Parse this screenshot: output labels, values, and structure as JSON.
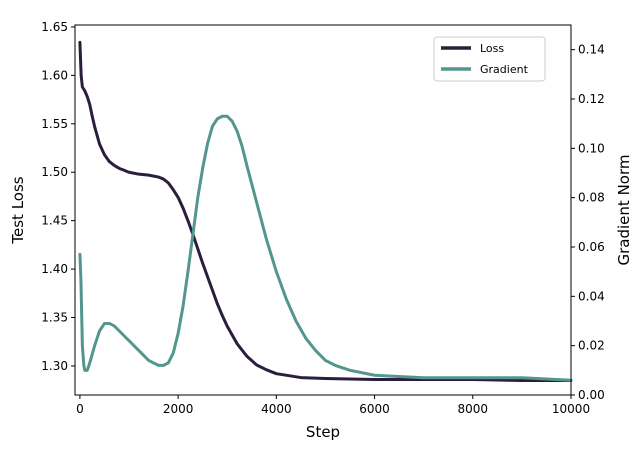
{
  "chart_data": {
    "type": "line",
    "xlabel": "Step",
    "ylabel_left": "Test Loss",
    "ylabel_right": "Gradient Norm",
    "xlim": [
      -100,
      10000
    ],
    "ylim_left": [
      1.27,
      1.652
    ],
    "ylim_right": [
      0.0,
      0.15
    ],
    "x_ticks": [
      0,
      2000,
      4000,
      6000,
      8000,
      10000
    ],
    "x_tick_labels": [
      "0",
      "2000",
      "4000",
      "6000",
      "8000",
      "10000"
    ],
    "y_left_ticks": [
      1.3,
      1.35,
      1.4,
      1.45,
      1.5,
      1.55,
      1.6,
      1.65
    ],
    "y_left_tick_labels": [
      "1.30",
      "1.35",
      "1.40",
      "1.45",
      "1.50",
      "1.55",
      "1.60",
      "1.65"
    ],
    "y_right_ticks": [
      0.0,
      0.02,
      0.04,
      0.06,
      0.08,
      0.1,
      0.12,
      0.14
    ],
    "y_right_tick_labels": [
      "0.00",
      "0.02",
      "0.04",
      "0.06",
      "0.08",
      "0.10",
      "0.12",
      "0.14"
    ],
    "grid": false,
    "legend_position": "top-right",
    "series": [
      {
        "name": "Loss",
        "axis": "left",
        "color": "#2b1d3c",
        "x": [
          0,
          25,
          50,
          100,
          150,
          200,
          250,
          300,
          400,
          500,
          600,
          700,
          800,
          900,
          1000,
          1200,
          1400,
          1600,
          1700,
          1800,
          1900,
          2000,
          2100,
          2200,
          2300,
          2400,
          2500,
          2600,
          2700,
          2800,
          2900,
          3000,
          3200,
          3400,
          3600,
          3800,
          4000,
          4500,
          5000,
          6000,
          7000,
          8000,
          9000,
          10000
        ],
        "y": [
          1.634,
          1.6,
          1.588,
          1.584,
          1.578,
          1.57,
          1.558,
          1.547,
          1.529,
          1.518,
          1.511,
          1.507,
          1.504,
          1.502,
          1.5,
          1.498,
          1.497,
          1.495,
          1.493,
          1.489,
          1.482,
          1.474,
          1.463,
          1.45,
          1.436,
          1.421,
          1.406,
          1.392,
          1.378,
          1.364,
          1.352,
          1.341,
          1.323,
          1.31,
          1.301,
          1.296,
          1.292,
          1.288,
          1.287,
          1.286,
          1.286,
          1.286,
          1.285,
          1.285
        ]
      },
      {
        "name": "Gradient",
        "axis": "right",
        "color": "#52968d",
        "x": [
          0,
          20,
          50,
          80,
          100,
          150,
          200,
          300,
          400,
          500,
          600,
          700,
          800,
          1000,
          1200,
          1400,
          1600,
          1700,
          1800,
          1900,
          2000,
          2100,
          2200,
          2300,
          2400,
          2500,
          2600,
          2700,
          2800,
          2900,
          3000,
          3100,
          3200,
          3300,
          3400,
          3600,
          3800,
          4000,
          4200,
          4400,
          4600,
          4800,
          5000,
          5200,
          5500,
          6000,
          7000,
          8000,
          8500,
          9000,
          10000
        ],
        "y": [
          0.057,
          0.047,
          0.02,
          0.012,
          0.01,
          0.01,
          0.013,
          0.02,
          0.026,
          0.029,
          0.029,
          0.028,
          0.026,
          0.022,
          0.018,
          0.014,
          0.012,
          0.012,
          0.013,
          0.017,
          0.025,
          0.036,
          0.05,
          0.065,
          0.08,
          0.092,
          0.102,
          0.109,
          0.112,
          0.113,
          0.113,
          0.111,
          0.107,
          0.101,
          0.093,
          0.078,
          0.063,
          0.05,
          0.039,
          0.03,
          0.023,
          0.018,
          0.014,
          0.012,
          0.01,
          0.008,
          0.007,
          0.007,
          0.007,
          0.007,
          0.006
        ]
      }
    ]
  }
}
